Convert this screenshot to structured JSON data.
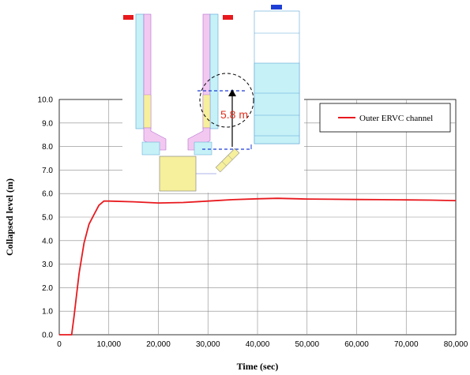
{
  "chart_data": {
    "type": "line",
    "xlabel": "Time (sec)",
    "ylabel": "Collapsed level (m)",
    "xlim": [
      0,
      80000
    ],
    "ylim": [
      0,
      10
    ],
    "x_ticks": [
      "0",
      "10,000",
      "20,000",
      "30,000",
      "40,000",
      "50,000",
      "60,000",
      "70,000",
      "80,000"
    ],
    "y_ticks": [
      "0.0",
      "1.0",
      "2.0",
      "3.0",
      "4.0",
      "5.0",
      "6.0",
      "7.0",
      "8.0",
      "9.0",
      "10.0"
    ],
    "grid": true,
    "legend_position": "top-right",
    "series": [
      {
        "name": "Outer ERVC channel",
        "color": "#e8191e",
        "x": [
          0,
          2500,
          3000,
          4000,
          5000,
          6000,
          7000,
          8000,
          9000,
          10000,
          15000,
          20000,
          25000,
          30000,
          35000,
          40000,
          44000,
          50000,
          55000,
          60000,
          65000,
          70000,
          75000,
          80000
        ],
        "y": [
          0,
          0,
          0.8,
          2.6,
          3.9,
          4.7,
          5.1,
          5.5,
          5.68,
          5.68,
          5.65,
          5.6,
          5.62,
          5.68,
          5.74,
          5.78,
          5.8,
          5.77,
          5.76,
          5.75,
          5.74,
          5.73,
          5.72,
          5.7
        ]
      }
    ],
    "annotations": [
      {
        "text": "5.8 m",
        "color": "#e0301e"
      }
    ]
  }
}
